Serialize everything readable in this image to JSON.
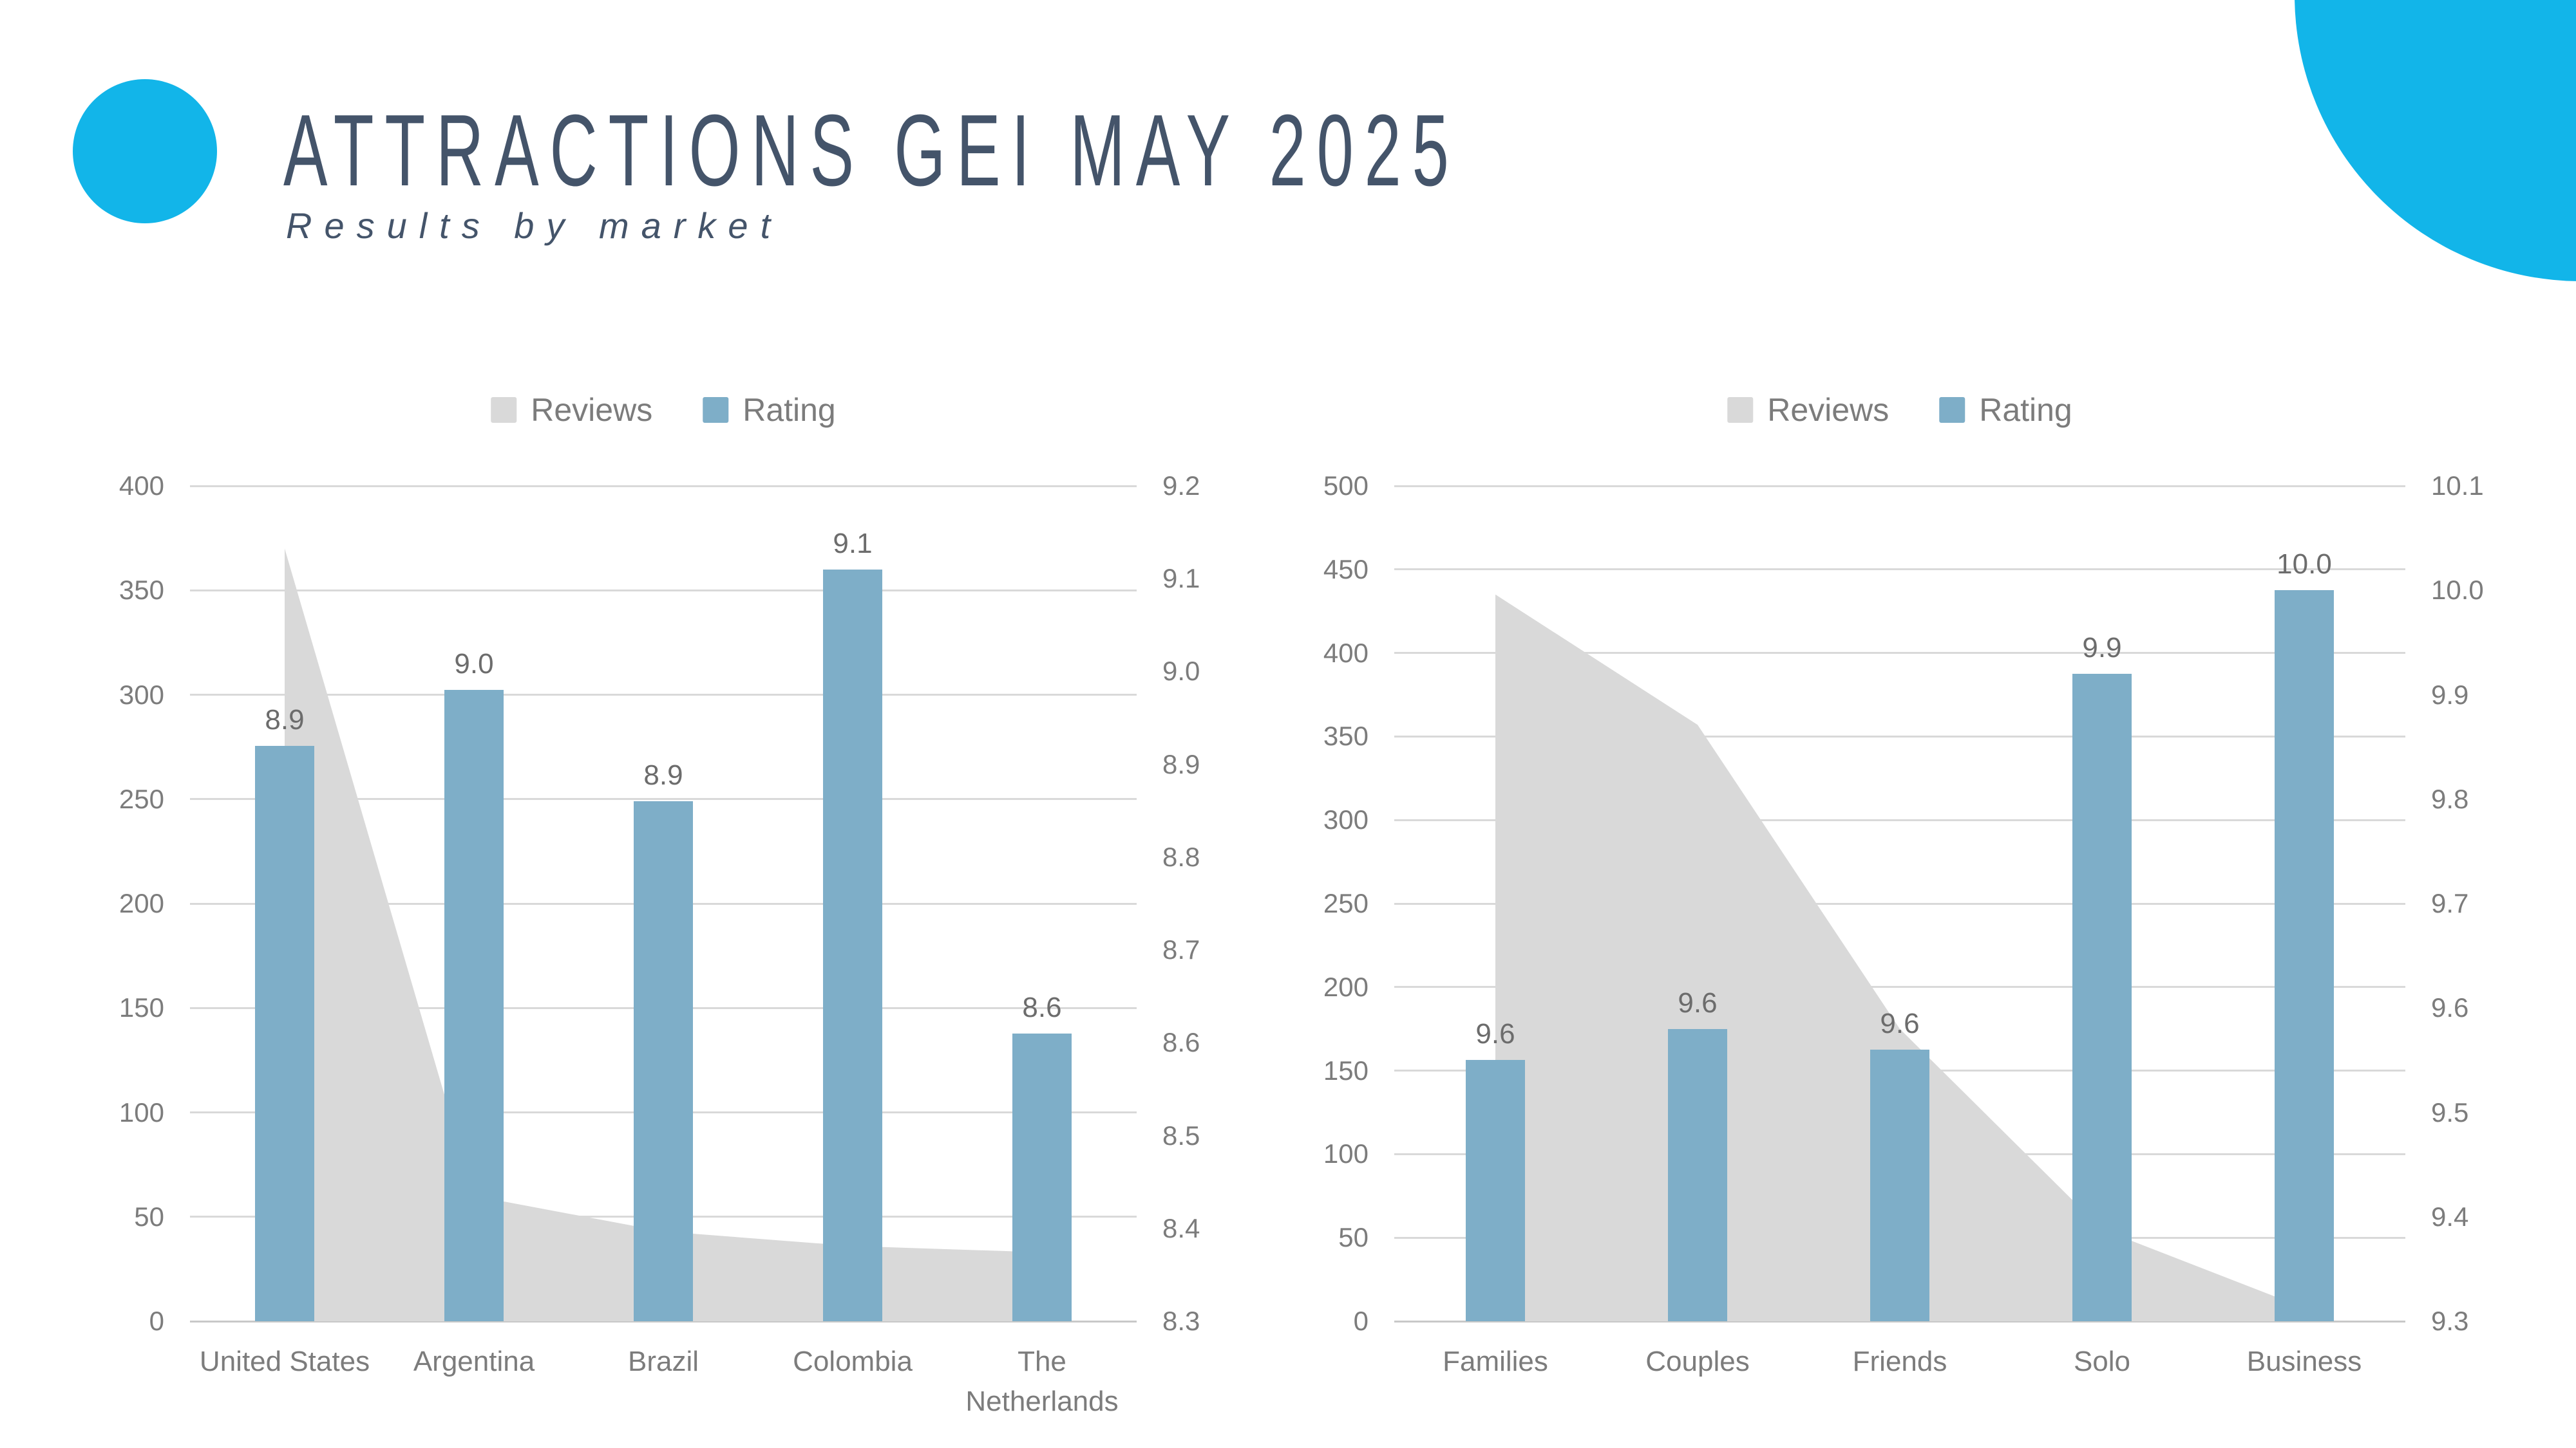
{
  "page": {
    "title": "ATTRACTIONS GEI MAY 2025",
    "subtitle": "Results by market"
  },
  "colors": {
    "accent_cyan": "#12B5E9",
    "title_text": "#44546A",
    "bar_blue": "#7EAEC8",
    "area_gray": "#D9D9D9",
    "gridline": "#D9D9D9",
    "baseline": "#C8C8C8",
    "axis_text": "#7C7C7C",
    "data_label_text": "#6C6C6C"
  },
  "chart_data": [
    {
      "type": "combo-area-bar",
      "name": "results-by-country",
      "title": "",
      "grid": true,
      "legend_position": "top",
      "legend": [
        {
          "label": "Reviews",
          "color": "#D9D9D9"
        },
        {
          "label": "Rating",
          "color": "#7EAEC8"
        }
      ],
      "categories": [
        "United States",
        "Argentina",
        "Brazil",
        "Colombia",
        "The Netherlands"
      ],
      "series": [
        {
          "name": "Reviews",
          "type": "area",
          "axis": "left",
          "values": [
            370,
            60,
            43,
            36,
            33
          ]
        },
        {
          "name": "Rating",
          "type": "bar",
          "axis": "right",
          "values": [
            8.92,
            8.98,
            8.86,
            9.11,
            8.61
          ],
          "data_labels": [
            "8.9",
            "9.0",
            "8.9",
            "9.1",
            "8.6"
          ]
        }
      ],
      "left_axis": {
        "min": 0,
        "max": 400,
        "tick_labels": [
          "400",
          "350",
          "300",
          "250",
          "200",
          "150",
          "100",
          "50",
          "0"
        ]
      },
      "right_axis": {
        "min": 8.3,
        "max": 9.2,
        "tick_labels": [
          "9.2",
          "9.1",
          "9.0",
          "8.9",
          "8.8",
          "8.7",
          "8.6",
          "8.5",
          "8.4",
          "8.3"
        ]
      }
    },
    {
      "type": "combo-area-bar",
      "name": "results-by-traveler-type",
      "title": "",
      "grid": true,
      "legend_position": "top",
      "legend": [
        {
          "label": "Reviews",
          "color": "#D9D9D9"
        },
        {
          "label": "Rating",
          "color": "#7EAEC8"
        }
      ],
      "categories": [
        "Families",
        "Couples",
        "Friends",
        "Solo",
        "Business"
      ],
      "series": [
        {
          "name": "Reviews",
          "type": "area",
          "axis": "left",
          "values": [
            435,
            357,
            175,
            55,
            8
          ]
        },
        {
          "name": "Rating",
          "type": "bar",
          "axis": "right",
          "values": [
            9.55,
            9.58,
            9.56,
            9.92,
            10.0
          ],
          "data_labels": [
            "9.6",
            "9.6",
            "9.6",
            "9.9",
            "10.0"
          ]
        }
      ],
      "left_axis": {
        "min": 0,
        "max": 500,
        "tick_labels": [
          "500",
          "450",
          "400",
          "350",
          "300",
          "250",
          "200",
          "150",
          "100",
          "50",
          "0"
        ]
      },
      "right_axis": {
        "min": 9.3,
        "max": 10.1,
        "tick_labels": [
          "10.1",
          "10.0",
          "9.9",
          "9.8",
          "9.7",
          "9.6",
          "9.5",
          "9.4",
          "9.3"
        ]
      }
    }
  ]
}
